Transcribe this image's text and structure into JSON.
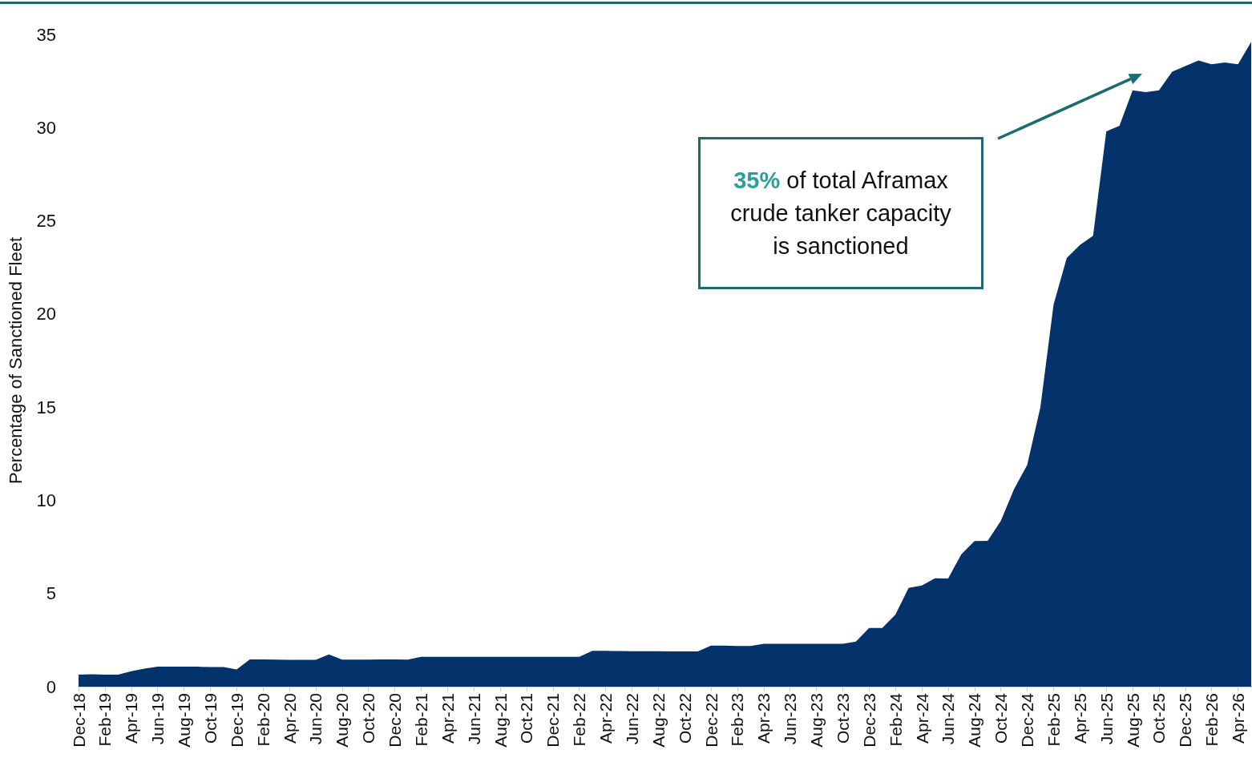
{
  "chart_data": {
    "type": "area",
    "ylabel": "Percentage of Sanctioned Fleet",
    "categories": [
      "Dec-18",
      null,
      "Feb-19",
      null,
      "Apr-19",
      null,
      "Jun-19",
      null,
      "Aug-19",
      null,
      "Oct-19",
      null,
      "Dec-19",
      null,
      "Feb-20",
      null,
      "Apr-20",
      null,
      "Jun-20",
      null,
      "Aug-20",
      null,
      "Oct-20",
      null,
      "Dec-20",
      null,
      "Feb-21",
      null,
      "Apr-21",
      null,
      "Jun-21",
      null,
      "Aug-21",
      null,
      "Oct-21",
      null,
      "Dec-21",
      null,
      "Feb-22",
      null,
      "Apr-22",
      null,
      "Jun-22",
      null,
      "Aug-22",
      null,
      "Oct-22",
      null,
      "Dec-22",
      null,
      "Feb-23",
      null,
      "Apr-23",
      null,
      "Jun-23",
      null,
      "Aug-23",
      null,
      "Oct-23",
      null,
      "Dec-23",
      null,
      "Feb-24",
      null,
      "Apr-24",
      null,
      "Jun-24",
      null,
      "Aug-24",
      null,
      "Oct-24",
      null,
      "Dec-24",
      null,
      "Feb-25",
      null,
      "Apr-25",
      null,
      "Jun-25",
      null,
      "Aug-25",
      null,
      "Oct-25",
      null,
      "Dec-25",
      null,
      "Feb-26",
      null,
      "Apr-26",
      null
    ],
    "series": [
      {
        "color": "#04326b",
        "values": [
          0.65,
          0.67,
          0.65,
          0.65,
          0.83,
          0.97,
          1.08,
          1.07,
          1.07,
          1.07,
          1.05,
          1.05,
          0.92,
          1.46,
          1.46,
          1.45,
          1.44,
          1.44,
          1.44,
          1.73,
          1.45,
          1.45,
          1.45,
          1.46,
          1.46,
          1.45,
          1.6,
          1.6,
          1.6,
          1.6,
          1.6,
          1.6,
          1.6,
          1.6,
          1.6,
          1.6,
          1.6,
          1.6,
          1.6,
          1.92,
          1.92,
          1.91,
          1.9,
          1.9,
          1.9,
          1.89,
          1.89,
          1.89,
          2.2,
          2.2,
          2.18,
          2.18,
          2.3,
          2.3,
          2.3,
          2.3,
          2.3,
          2.3,
          2.3,
          2.42,
          3.15,
          3.15,
          3.87,
          5.3,
          5.43,
          5.82,
          5.8,
          7.1,
          7.82,
          7.83,
          8.9,
          10.6,
          11.9,
          15.0,
          20.5,
          23.0,
          23.7,
          24.2,
          29.8,
          30.1,
          32.0,
          31.9,
          32.0,
          33.0,
          33.3,
          33.6,
          33.4,
          33.5,
          33.4,
          34.6
        ]
      }
    ],
    "ylim": [
      0,
      35
    ],
    "yticks": [
      0,
      5,
      10,
      15,
      20,
      25,
      30,
      35
    ],
    "annotations": [
      "35% of total Aframax crude tanker capacity is sanctioned"
    ]
  }
}
